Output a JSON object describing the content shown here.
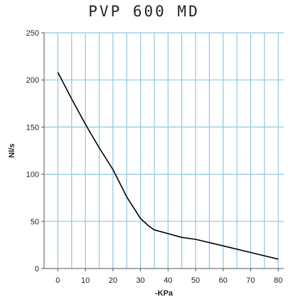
{
  "chart_data": {
    "type": "line",
    "title": "PVP 600 MD",
    "xlabel": "-KPa",
    "ylabel": "Nl/s",
    "xlim": [
      -5,
      82
    ],
    "ylim": [
      0,
      250
    ],
    "xticks": [
      0,
      10,
      20,
      30,
      40,
      50,
      60,
      70,
      80
    ],
    "yticks": [
      0,
      50,
      100,
      150,
      200,
      250
    ],
    "grid": true,
    "series": [
      {
        "x": [
          0,
          5,
          10,
          15,
          20,
          25,
          30,
          33,
          35,
          40,
          45,
          50,
          60,
          70,
          80
        ],
        "y": [
          208,
          180,
          153,
          128,
          105,
          76,
          53,
          45,
          41,
          37,
          33,
          31,
          24,
          17,
          10
        ],
        "color": "#000000"
      }
    ],
    "colors": {
      "grid": "#8fc7dd",
      "axis": "#555555",
      "line": "#000000"
    }
  }
}
